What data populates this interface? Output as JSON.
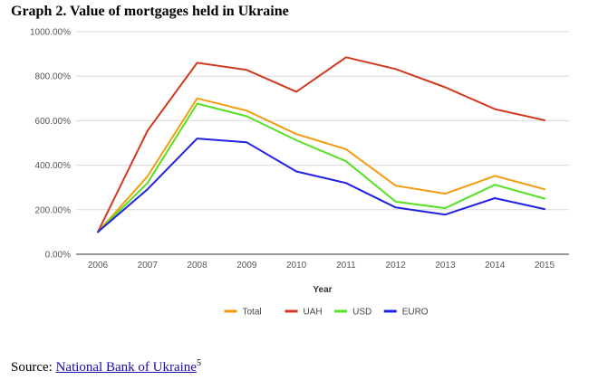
{
  "header": {
    "title": "Graph 2. Value of mortgages held in Ukraine"
  },
  "chart_data": {
    "type": "line",
    "title": "Graph 2. Value of mortgages held in Ukraine",
    "xlabel": "Year",
    "ylabel": "",
    "categories": [
      "2006",
      "2007",
      "2008",
      "2009",
      "2010",
      "2011",
      "2012",
      "2013",
      "2014",
      "2015"
    ],
    "ylim": [
      0,
      1000
    ],
    "yticks": [
      0,
      200,
      400,
      600,
      800,
      1000
    ],
    "ytick_labels": [
      "0.00%",
      "200.00%",
      "400.00%",
      "600.00%",
      "800.00%",
      "1000.00%"
    ],
    "grid": true,
    "legend_position": "bottom",
    "series": [
      {
        "name": "Total",
        "color": "#f39c12",
        "values": [
          100,
          350,
          700,
          645,
          540,
          472,
          308,
          272,
          352,
          292
        ]
      },
      {
        "name": "UAH",
        "color": "#d23a1f",
        "values": [
          100,
          555,
          860,
          828,
          730,
          885,
          832,
          750,
          652,
          602
        ]
      },
      {
        "name": "USD",
        "color": "#55e022",
        "values": [
          100,
          320,
          677,
          620,
          512,
          418,
          236,
          207,
          312,
          250
        ]
      },
      {
        "name": "EURO",
        "color": "#2222e0",
        "values": [
          100,
          292,
          520,
          503,
          372,
          320,
          210,
          178,
          252,
          203
        ]
      }
    ]
  },
  "footer": {
    "source_label": "Source: ",
    "source_link": "National Bank of Ukraine",
    "footnote": "5"
  }
}
